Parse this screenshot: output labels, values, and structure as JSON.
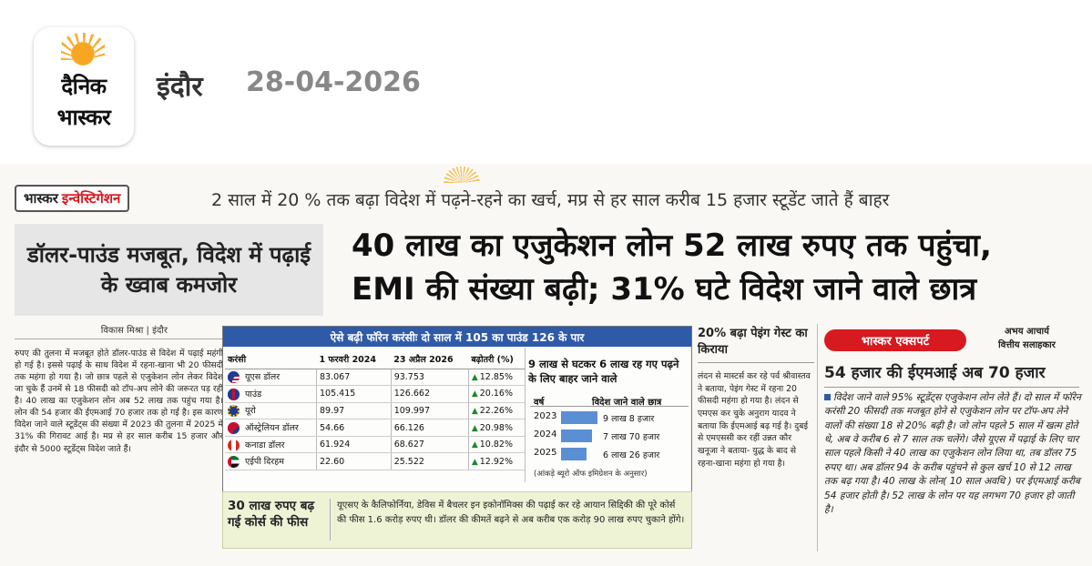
{
  "header": {
    "logo_line1": "दैनिक",
    "logo_line2": "भास्कर",
    "city": "इंदौर",
    "date": "28-04-2026"
  },
  "section_tag": {
    "part1": "भास्कर",
    "part2": "इन्वेस्टिगेशन"
  },
  "kicker": "2 साल में 20 % तक बढ़ा विदेश में पढ़ने-रहने का खर्च, मप्र से हर साल करीब 15 हजार स्टूडेंट जाते हैं बाहर",
  "side_headline": "डॉलर-पाउंड मजबूत, विदेश में पढ़ाई के ख्वाब कमजोर",
  "main_headline": {
    "line1": "40 लाख का एजुकेशन लोन 52 लाख रुपए तक पहुंचा,",
    "line2": "EMI की संख्या बढ़ी; 31% घटे विदेश जाने वाले छात्र"
  },
  "byline": "विकास मिश्रा | इंदौर",
  "body_col1": "रुपए की तुलना में मजबूत होते डॉलर-पाउंड से विदेश में पढ़ाई महंगी हो गई है। इससे पढ़ाई के साथ विदेश में रहना-खाना भी 20 फीसदी तक महंगा हो गया है। जो छात्र पहले से एजुकेशन लोन लेकर विदेश जा चुके हैं उनमें से 18 फीसदी को टॉप-अप लोने की जरूरत पड़ रही है। 40 लाख का एजुकेशन लोन अब 52 लाख तक पहुंच गया है। लोन की 54 हजार की ईएमआई 70 हजार तक हो गई है। इस कारण विदेश जाने वाले स्टूडेंट्स की संख्या में 2023 की तुलना में 2025 में 31% की गिरावट आई है। मप्र से हर साल करीब 15 हजार और इंदौर से 5000 स्टूडेंट्स विदेश जाते हैं।",
  "currency_table": {
    "title": "ऐसे बढ़ी फॉरेन करंसीः दो साल में 105 का पाउंड 126 के पार",
    "headers": [
      "करंसी",
      "1 फरवरी 2024",
      "23 अप्रैल 2026",
      "बढ़ोतरी (%)"
    ],
    "rows": [
      {
        "flag": "us-flag-icon",
        "currency": "यूएस डॉलर",
        "feb2024": "83.067",
        "apr2026": "93.753",
        "growth": "12.85%"
      },
      {
        "flag": "uk-flag-icon",
        "currency": "पाउंड",
        "feb2024": "105.415",
        "apr2026": "126.662",
        "growth": "20.16%"
      },
      {
        "flag": "eu-flag-icon",
        "currency": "यूरो",
        "feb2024": "89.97",
        "apr2026": "109.997",
        "growth": "22.26%"
      },
      {
        "flag": "au-flag-icon",
        "currency": "ऑस्ट्रेलियन डॉलर",
        "feb2024": "54.66",
        "apr2026": "66.126",
        "growth": "20.98%"
      },
      {
        "flag": "ca-flag-icon",
        "currency": "कनाडा डॉलर",
        "feb2024": "61.924",
        "apr2026": "68.627",
        "growth": "10.82%"
      },
      {
        "flag": "ae-flag-icon",
        "currency": "एईपी दिरहम",
        "feb2024": "22.60",
        "apr2026": "25.522",
        "growth": "12.92%"
      }
    ]
  },
  "students_chart": {
    "title": "9 लाख से घटकर 6 लाख रह गए पढ़ने के लिए बाहर जाने वाले",
    "col_year": "वर्ष",
    "col_value": "विदेश जाने वाले छात्र",
    "source": "(आंकड़े ब्यूरो ऑफ इमिग्रेशन के अनुसार)"
  },
  "chart_data": {
    "type": "bar",
    "categories": [
      "2023",
      "2024",
      "2025"
    ],
    "values": [
      908000,
      770000,
      626000
    ],
    "value_labels": [
      "9 लाख 8 हजार",
      "7 लाख 70 हजार",
      "6 लाख 26 हजार"
    ]
  },
  "fee_box": {
    "headline": "30 लाख रुपए बढ़ गई कोर्स की फीस",
    "text": "यूएसए के कैलिफोर्निया, डेविस में बैचलर इन इकोनॉमिक्स की पढ़ाई कर रहे आयान सिद्दिकी की पूरे कोर्स की फीस 1.6 करोड़ रुपए थी। डॉलर की कीमतें बढ़ने से अब करीब एक करोड़ 90 लाख रुपए चुकाने होंगे।"
  },
  "pg": {
    "headline": "20% बढ़ा पेइंग गेस्ट का किराया",
    "body": "लंदन से मास्टर्स कर रहे पर्व श्रीवास्तव ने बताया, पेइंग गेस्ट में रहना 20 फीसदी महंगा हो गया है। लंदन से एमएस कर चुके अनुराग यादव ने बताया कि ईएमआई बढ़ गई है। दुबई से एमएससी कर रहीं उन्नत कौर खनूजा ने बताया- युद्ध के बाद से रहना-खाना महंगा हो गया है।"
  },
  "expert": {
    "tag": "भास्कर एक्सपर्ट",
    "name": "अभय आचार्य",
    "role": "वित्तीय सलाहकार",
    "headline": "54 हजार की ईएमआई अब 70 हजार",
    "body": "विदेश जाने वाले 95% स्टूडेंट्स एजुकेशन लोन लेते हैं। दो साल में फॉरेन करंसी 20 फीसदी तक मजबूत होने से एजुकेशन लोन पर टॉप-अप लेने वालों की संख्या 18 से 20% बढ़ी है। जो लोन पहले 5 साल में खत्म होते थे, अब वे करीब 6 से 7 साल तक चलेंगे। जैसे यूएस में पढ़ाई के लिए चार साल पहले किसी ने 40 लाख का एजुकेशन लोन लिया था, तब डॉलर 75 रुपए था। अब डॉलर 94 के करीब पहुंचने से कुल खर्च 10 से 12 लाख तक बढ़ गया है। 40 लाख के लोन( 10 साल अवधि ) पर ईएमआई करीब 54 हजार होती है। 52 लाख के लोन पर यह लगभग 70 हजार हो जाती है।"
  },
  "colors": {
    "accent_red": "#d71920",
    "table_blue": "#2f5aa8",
    "bar_blue": "#5b8fd3",
    "growth_green": "#1a8a2e"
  }
}
